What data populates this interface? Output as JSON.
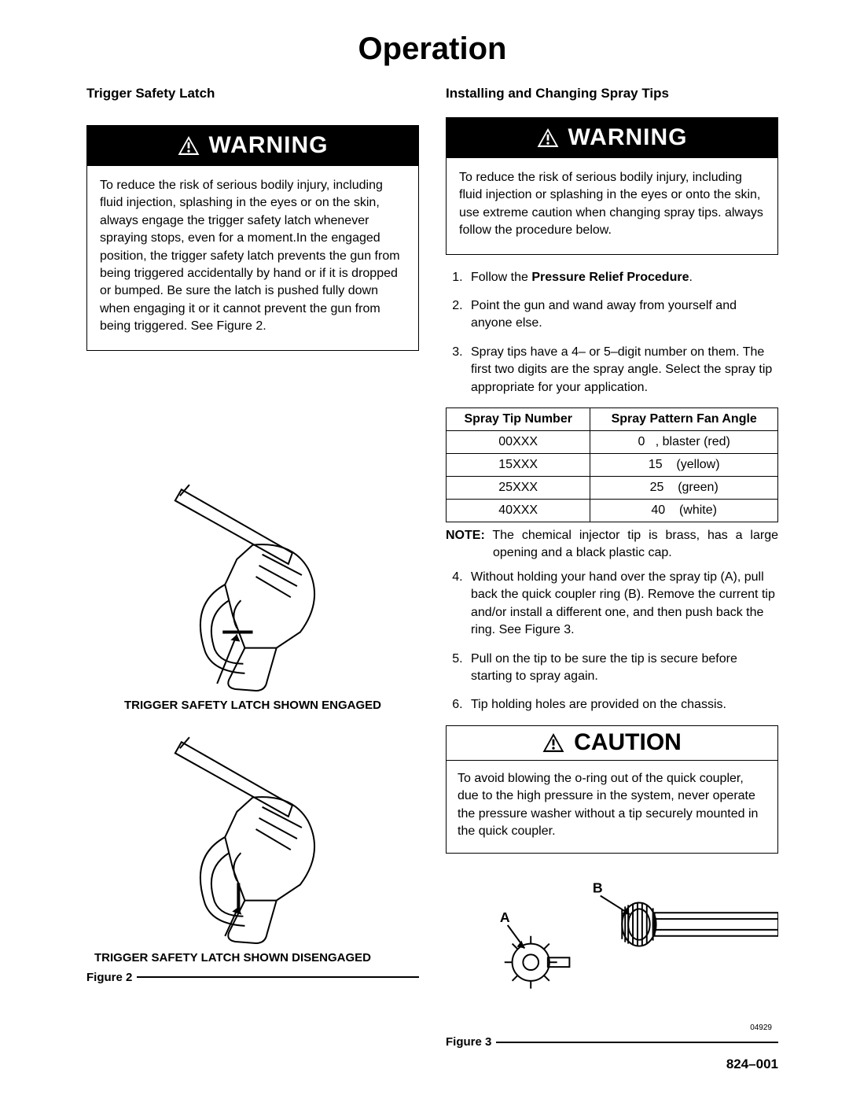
{
  "title": "Operation",
  "left": {
    "heading": "Trigger Safety Latch",
    "warning_label": "WARNING",
    "warning_text": "To reduce the risk of serious bodily injury, including fluid injection, splashing in the eyes or on the skin, always engage the trigger safety latch whenever spraying stops, even for a moment.In the engaged position, the trigger safety latch prevents the gun from being triggered accidentally by hand or if it is dropped or bumped. Be sure the latch is pushed fully down when engaging it or it cannot prevent the gun from being triggered. See Figure 2.",
    "fig2_caption_engaged": "TRIGGER SAFETY LATCH SHOWN ENGAGED",
    "fig2_caption_disengaged": "TRIGGER SAFETY LATCH SHOWN DISENGAGED",
    "figure2_label": "Figure 2"
  },
  "right": {
    "heading": "Installing and Changing Spray Tips",
    "warning_label": "WARNING",
    "warning_text": "To reduce the risk of serious bodily injury, including fluid injection or splashing in the eyes or onto the skin, use extreme caution when changing spray tips. always follow the procedure below.",
    "steps_1_3": [
      "Follow the <b>Pressure Relief Procedure</b>.",
      "Point the gun and wand away from yourself and anyone else.",
      "Spray tips have a 4– or 5–digit number on them. The first two digits are the spray angle. Select the spray tip appropriate for your application."
    ],
    "table": {
      "headers": [
        "Spray Tip Number",
        "Spray Pattern Fan Angle"
      ],
      "rows": [
        [
          "00XXX",
          "0   , blaster (red)"
        ],
        [
          "15XXX",
          "15    (yellow)"
        ],
        [
          "25XXX",
          "25    (green)"
        ],
        [
          "40XXX",
          "40    (white)"
        ]
      ]
    },
    "note_label": "NOTE:",
    "note_text": "The chemical injector tip is brass, has a large opening and a black plastic cap.",
    "steps_4_6": [
      "Without holding your hand over the spray tip (A), pull back the quick coupler ring (B). Remove the current tip and/or install a different one, and then push back the ring. See Figure 3.",
      "Pull on the tip to be sure the tip is secure before starting to spray again.",
      "Tip holding holes are provided on the chassis."
    ],
    "caution_label": "CAUTION",
    "caution_text": "To avoid blowing the o-ring out of the quick coupler, due to the high pressure in the system, never operate the pressure washer without a tip securely mounted in the quick coupler.",
    "label_A": "A",
    "label_B": "B",
    "smallnum": "04929",
    "figure3_label": "Figure 3",
    "docnum": "824–001"
  },
  "colors": {
    "black": "#000000",
    "white": "#ffffff"
  }
}
